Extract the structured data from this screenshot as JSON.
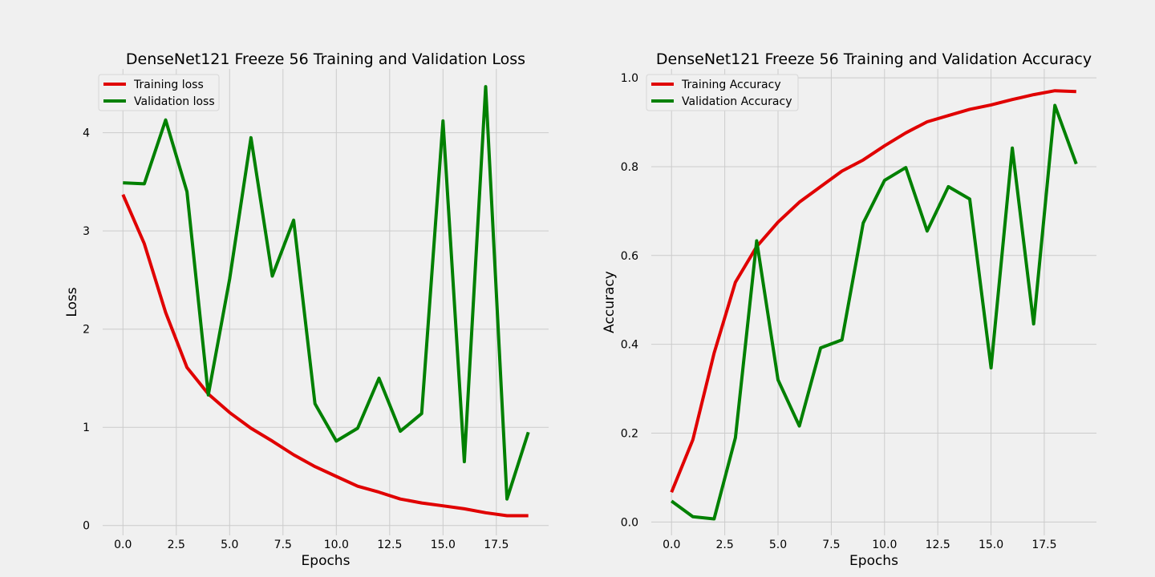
{
  "chart_data": [
    {
      "type": "line",
      "title": "DenseNet121 Freeze 56 Training and Validation Loss",
      "xlabel": "Epochs",
      "ylabel": "Loss",
      "xlim": [
        -0.95,
        19.95
      ],
      "ylim": [
        -0.1,
        4.65
      ],
      "xticks": [
        0,
        2.5,
        5,
        7.5,
        10,
        12.5,
        15,
        17.5
      ],
      "xtick_labels": [
        "0.0",
        "2.5",
        "5.0",
        "7.5",
        "10.0",
        "12.5",
        "15.0",
        "17.5"
      ],
      "yticks": [
        0,
        1,
        2,
        3,
        4
      ],
      "ytick_labels": [
        "0",
        "1",
        "2",
        "3",
        "4"
      ],
      "grid": true,
      "legend_position": "top-left",
      "x": [
        0,
        1,
        2,
        3,
        4,
        5,
        6,
        7,
        8,
        9,
        10,
        11,
        12,
        13,
        14,
        15,
        16,
        17,
        18,
        19
      ],
      "series": [
        {
          "name": "Training loss",
          "color": "#e00000",
          "values": [
            3.37,
            2.87,
            2.17,
            1.61,
            1.34,
            1.15,
            0.99,
            0.86,
            0.72,
            0.6,
            0.5,
            0.4,
            0.34,
            0.27,
            0.23,
            0.2,
            0.17,
            0.13,
            0.1,
            0.1
          ]
        },
        {
          "name": "Validation loss",
          "color": "#008000",
          "values": [
            3.49,
            3.48,
            4.13,
            3.4,
            1.33,
            2.51,
            3.95,
            2.54,
            3.11,
            1.24,
            0.86,
            0.99,
            1.5,
            0.96,
            1.14,
            4.12,
            0.65,
            4.47,
            0.27,
            0.95
          ]
        }
      ]
    },
    {
      "type": "line",
      "title": "DenseNet121 Freeze 56 Training and Validation Accuracy",
      "xlabel": "Epochs",
      "ylabel": "Accuracy",
      "xlim": [
        -0.95,
        19.95
      ],
      "ylim": [
        -0.03,
        1.02
      ],
      "xticks": [
        0,
        2.5,
        5,
        7.5,
        10,
        12.5,
        15,
        17.5
      ],
      "xtick_labels": [
        "0.0",
        "2.5",
        "5.0",
        "7.5",
        "10.0",
        "12.5",
        "15.0",
        "17.5"
      ],
      "yticks": [
        0,
        0.2,
        0.4,
        0.6,
        0.8,
        1.0
      ],
      "ytick_labels": [
        "0.0",
        "0.2",
        "0.4",
        "0.6",
        "0.8",
        "1.0"
      ],
      "grid": true,
      "legend_position": "top-left",
      "x": [
        0,
        1,
        2,
        3,
        4,
        5,
        6,
        7,
        8,
        9,
        10,
        11,
        12,
        13,
        14,
        15,
        16,
        17,
        18,
        19
      ],
      "series": [
        {
          "name": "Training Accuracy",
          "color": "#e00000",
          "values": [
            0.067,
            0.185,
            0.38,
            0.54,
            0.62,
            0.675,
            0.72,
            0.755,
            0.79,
            0.815,
            0.847,
            0.876,
            0.901,
            0.915,
            0.929,
            0.939,
            0.951,
            0.962,
            0.971,
            0.969
          ]
        },
        {
          "name": "Validation Accuracy",
          "color": "#008000",
          "values": [
            0.047,
            0.012,
            0.007,
            0.19,
            0.633,
            0.32,
            0.216,
            0.392,
            0.41,
            0.673,
            0.769,
            0.798,
            0.655,
            0.755,
            0.727,
            0.347,
            0.842,
            0.446,
            0.938,
            0.806
          ]
        }
      ]
    }
  ]
}
